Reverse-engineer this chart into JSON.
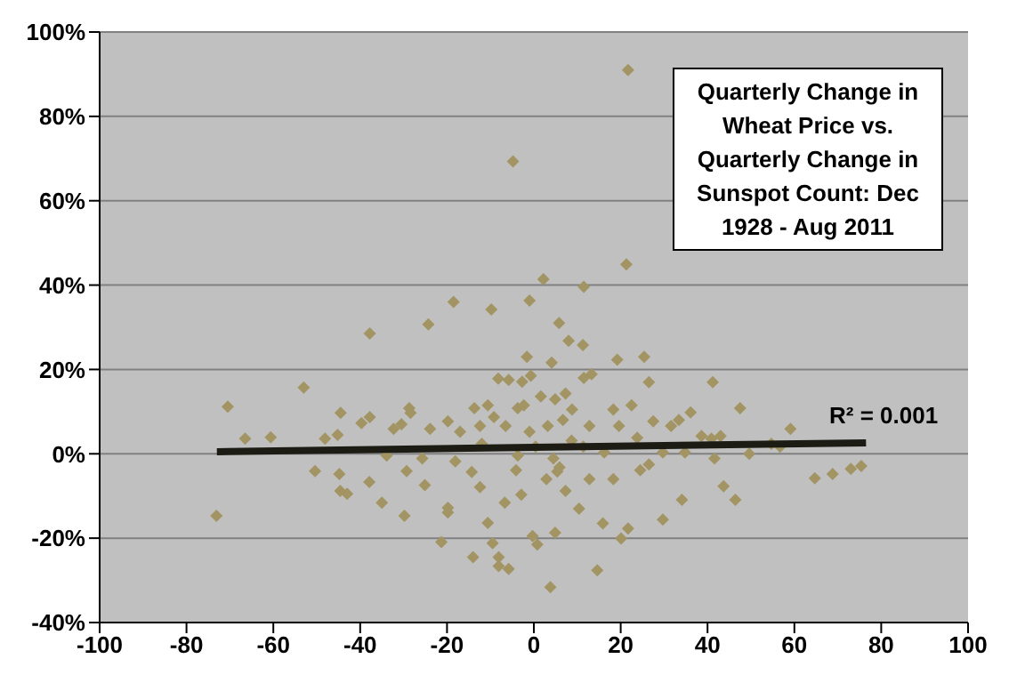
{
  "chart_data": {
    "type": "scatter",
    "title": "Quarterly Change in Wheat Price vs. Quarterly Change in Sunspot Count: Dec 1928 - Aug 2011",
    "annotations": [
      "R² = 0.001"
    ],
    "xlim": [
      -100,
      100
    ],
    "xticks": [
      -100,
      -80,
      -60,
      -40,
      -20,
      0,
      20,
      40,
      60,
      80,
      100
    ],
    "ylim": [
      -40,
      100
    ],
    "yticks": [
      {
        "value": -40,
        "label": "-40%"
      },
      {
        "value": -20,
        "label": "-20%"
      },
      {
        "value": 0,
        "label": "0%"
      },
      {
        "value": 20,
        "label": "20%"
      },
      {
        "value": 40,
        "label": "40%"
      },
      {
        "value": 60,
        "label": "60%"
      },
      {
        "value": 80,
        "label": "80%"
      },
      {
        "value": 100,
        "label": "100%"
      }
    ],
    "grid": "y",
    "legend": false,
    "marker": "diamond",
    "series": [
      {
        "type": "scatter",
        "color": "#a39463",
        "x": [
          21.7,
          -4.8,
          21.3,
          2.2,
          11.5,
          -18.5,
          -1,
          -9.8,
          -24.3,
          -37.8,
          5.8,
          8,
          11.3,
          -1.6,
          25.4,
          19.2,
          4.1,
          13.3,
          -53,
          -8.2,
          -5.8,
          -2.7,
          -0.7,
          26.5,
          41.2,
          11.5,
          -70.5,
          47.5,
          -44.5,
          -37.8,
          -28.7,
          -28.4,
          -13.7,
          -10.6,
          -3.7,
          -2.3,
          1.6,
          4.9,
          7.3,
          8.8,
          18.3,
          22.5,
          36.1,
          33.4,
          27.5,
          31.6,
          59.1,
          -66.5,
          -60.6,
          -48.1,
          -39.7,
          -45.2,
          -32.3,
          -30.5,
          -23.9,
          -19.8,
          -17,
          -12.4,
          -9.2,
          -6.5,
          3.2,
          6.7,
          12.8,
          19.6,
          38.6,
          40.9,
          43,
          54.7,
          56.7,
          49.6,
          34.8,
          29.7,
          -50.4,
          -44.8,
          -43,
          -44.6,
          -37.9,
          -35,
          -29.8,
          -29.3,
          -25.1,
          -19.8,
          -19.8,
          -21.3,
          -14,
          -12.4,
          -10.6,
          -9.5,
          -8.1,
          -5.8,
          -8.1,
          -6.7,
          -2.9,
          -0.3,
          0.8,
          3.8,
          4.9,
          14.6,
          15.9,
          20.1,
          21.7,
          29.7,
          34.1,
          46.4,
          43.7,
          64.7,
          68.8,
          73,
          75.4,
          -73.1,
          10.4,
          7.3,
          12.8,
          18.3,
          24.5,
          26.5,
          5.4,
          2.9,
          -4.1,
          -14.3,
          -18.1,
          -25.7,
          -33.9,
          11.4,
          16.2,
          8.7,
          0.4,
          -1,
          -3.7,
          -12,
          4.5,
          5.9,
          23.8,
          41.6
        ],
        "values": [
          91,
          69.3,
          44.9,
          41.4,
          39.6,
          36,
          36.3,
          34.2,
          30.7,
          28.5,
          31,
          26.8,
          25.8,
          23,
          23,
          22.3,
          21.6,
          18.9,
          15.7,
          17.8,
          17.5,
          17.1,
          18.5,
          17,
          17,
          18,
          11.2,
          10.8,
          9.7,
          8.7,
          10.8,
          9.7,
          10.8,
          11.5,
          10.8,
          11.5,
          13.6,
          12.9,
          14.3,
          10.5,
          10.5,
          11.5,
          9.8,
          8,
          7.7,
          6.6,
          5.9,
          3.6,
          3.9,
          3.6,
          7.3,
          4.5,
          5.9,
          7,
          5.9,
          7.7,
          5.2,
          6.6,
          8.7,
          6.6,
          6.6,
          8,
          6.6,
          6.6,
          4.2,
          3.6,
          4.2,
          2.4,
          1.7,
          0,
          0.3,
          0.3,
          -4.1,
          -4.8,
          -9.5,
          -8.8,
          -6.7,
          -11.6,
          -14.7,
          -4.1,
          -7.4,
          -12.8,
          -13.9,
          -20.9,
          -24.5,
          -7.9,
          -16.4,
          -21.2,
          -24.5,
          -27.3,
          -26.6,
          -11.6,
          -9.7,
          -19.5,
          -21.5,
          -31.6,
          -18.7,
          -27.6,
          -16.5,
          -20.1,
          -17.7,
          -15.6,
          -10.9,
          -10.9,
          -7.7,
          -5.8,
          -4.8,
          -3.6,
          -2.9,
          -14.7,
          -13,
          -8.8,
          -6,
          -6,
          -3.9,
          -2.5,
          -4.2,
          -6,
          -3.9,
          -4.3,
          -1.8,
          -1.1,
          -0.4,
          1.7,
          0.3,
          3.1,
          1.7,
          5.2,
          -0.4,
          2.4,
          -1.1,
          -3.2,
          3.8,
          -1.1
        ]
      },
      {
        "type": "line",
        "color": "#1c1c14",
        "marker": "none",
        "x": [
          -73,
          76.5
        ],
        "values": [
          0.5,
          2.6
        ]
      }
    ]
  }
}
